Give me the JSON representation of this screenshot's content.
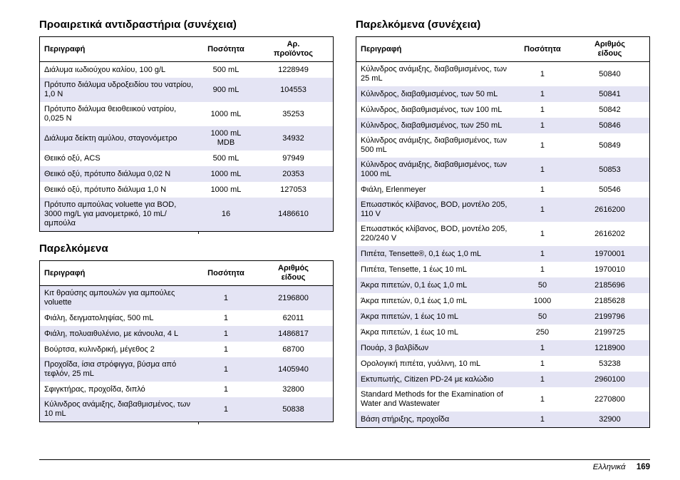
{
  "footer": {
    "language": "Ελληνικά",
    "page_number": "169"
  },
  "colors": {
    "row_shading": "#e4e4f4",
    "border": "#000000",
    "text": "#000000"
  },
  "sections": [
    {
      "title": "Προαιρετικά αντιδραστήρια (συνέχεια)",
      "columns": [
        "Περιγραφή",
        "Ποσότητα",
        "Αρ.\nπροϊόντος"
      ],
      "shaded_rows": "even",
      "rows": [
        [
          "Διάλυμα ιωδιούχου καλίου, 100 g/L",
          "500 mL",
          "1228949"
        ],
        [
          "Πρότυπο διάλυμα υδροξειδίου του νατρίου, 1,0 N",
          "900 mL",
          "104553"
        ],
        [
          "Πρότυπο διάλυμα θειοθειικού νατρίου, 0,025 N",
          "1000 mL",
          "35253"
        ],
        [
          "Διάλυμα δείκτη αμύλου, σταγονόμετρο",
          "1000 mL MDB",
          "34932"
        ],
        [
          "Θειικό οξύ, ACS",
          "500 mL",
          "97949"
        ],
        [
          "Θειικό οξύ, πρότυπο διάλυμα 0,02 N",
          "1000 mL",
          "20353"
        ],
        [
          "Θειικό οξύ, πρότυπο διάλυμα 1,0 N",
          "1000 mL",
          "127053"
        ],
        [
          "Πρότυπο αμπούλας voluette για BOD, 3000 mg/L για μανομετρικό, 10 mL/αμπούλα",
          "16",
          "1486610"
        ]
      ]
    },
    {
      "title": "Παρελκόμενα",
      "columns": [
        "Περιγραφή",
        "Ποσότητα",
        "Αριθμός\nείδους"
      ],
      "shaded_rows": "odd",
      "rows": [
        [
          "Κιτ θραύσης αμπουλών για αμπούλες voluette",
          "1",
          "2196800"
        ],
        [
          "Φιάλη, δειγματοληψίας, 500 mL",
          "1",
          "62011"
        ],
        [
          "Φιάλη, πολυαιθυλένιο, με κάνουλα, 4 L",
          "1",
          "1486817"
        ],
        [
          "Βούρτσα, κυλινδρική, μέγεθος 2",
          "1",
          "68700"
        ],
        [
          "Προχοΐδα, ίσια στρόφιγγα, βύσμα από τεφλόν, 25 mL",
          "1",
          "1405940"
        ],
        [
          "Σφιγκτήρας, προχοΐδα, διπλό",
          "1",
          "32800"
        ],
        [
          "Κύλινδρος ανάμιξης, διαβαθμισμένος, των 10 mL",
          "1",
          "50838"
        ]
      ]
    },
    {
      "title": "Παρελκόμενα (συνέχεια)",
      "columns": [
        "Περιγραφή",
        "Ποσότητα",
        "Αριθμός\nείδους"
      ],
      "shaded_rows": "even",
      "rows": [
        [
          "Κύλινδρος ανάμιξης, διαβαθμισμένος, των 25 mL",
          "1",
          "50840"
        ],
        [
          "Κύλινδρος, διαβαθμισμένος, των 50 mL",
          "1",
          "50841"
        ],
        [
          "Κύλινδρος, διαβαθμισμένος, των 100 mL",
          "1",
          "50842"
        ],
        [
          "Κύλινδρος, διαβαθμισμένος, των 250 mL",
          "1",
          "50846"
        ],
        [
          "Κύλινδρος ανάμιξης, διαβαθμισμένος, των 500 mL",
          "1",
          "50849"
        ],
        [
          "Κύλινδρος ανάμιξης, διαβαθμισμένος, των 1000 mL",
          "1",
          "50853"
        ],
        [
          "Φιάλη, Erlenmeyer",
          "1",
          "50546"
        ],
        [
          "Επωαστικός κλίβανος, BOD, μοντέλο 205, 110 V",
          "1",
          "2616200"
        ],
        [
          "Επωαστικός κλίβανος, BOD, μοντέλο 205, 220/240 V",
          "1",
          "2616202"
        ],
        [
          "Πιπέτα, Tensette®, 0,1 έως 1,0 mL",
          "1",
          "1970001"
        ],
        [
          "Πιπέτα, Tensette, 1 έως 10 mL",
          "1",
          "1970010"
        ],
        [
          "Άκρα πιπετών, 0,1 έως 1,0 mL",
          "50",
          "2185696"
        ],
        [
          "Άκρα πιπετών, 0,1 έως 1,0 mL",
          "1000",
          "2185628"
        ],
        [
          "Άκρα πιπετών, 1 έως 10 mL",
          "50",
          "2199796"
        ],
        [
          "Άκρα πιπετών, 1 έως 10 mL",
          "250",
          "2199725"
        ],
        [
          "Πουάρ, 3 βαλβίδων",
          "1",
          "1218900"
        ],
        [
          "Ορολογική πιπέτα, γυάλινη, 10 mL",
          "1",
          "53238"
        ],
        [
          "Εκτυπωτής, Citizen PD-24 με καλώδιο",
          "1",
          "2960100"
        ],
        [
          "Standard Methods for the Examination of Water and Wastewater",
          "1",
          "2270800"
        ],
        [
          "Βάση στήριξης, προχοΐδα",
          "1",
          "32900"
        ]
      ]
    }
  ]
}
